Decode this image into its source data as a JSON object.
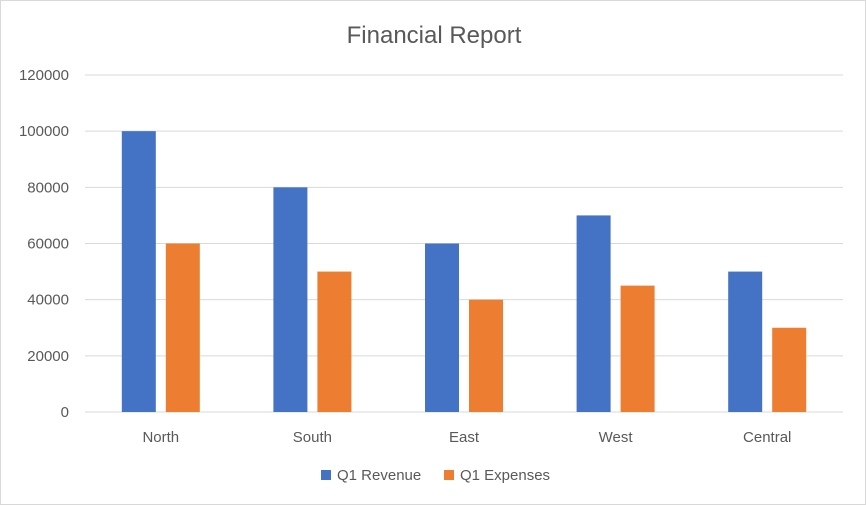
{
  "chart_data": {
    "type": "bar",
    "title": "Financial Report",
    "categories": [
      "North",
      "South",
      "East",
      "West",
      "Central"
    ],
    "series": [
      {
        "name": "Q1 Revenue",
        "values": [
          100000,
          80000,
          60000,
          70000,
          50000
        ],
        "color": "#4472c4"
      },
      {
        "name": "Q1 Expenses",
        "values": [
          60000,
          50000,
          40000,
          45000,
          30000
        ],
        "color": "#ed7d31"
      }
    ],
    "ylim": [
      0,
      120000
    ],
    "yticks": [
      "0",
      "20000",
      "40000",
      "60000",
      "80000",
      "100000",
      "120000"
    ],
    "grid": true,
    "legend_position": "bottom"
  }
}
